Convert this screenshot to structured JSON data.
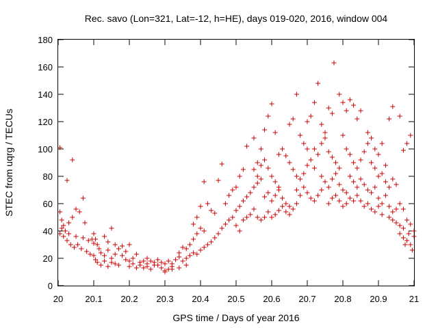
{
  "chart_data": {
    "type": "scatter",
    "title": "Rec. savo (Lon=321, Lat=-12, h=HE), days 019-020, 2016, window 004",
    "xlabel": "GPS time / Days of year 2016",
    "ylabel": "STEC from uqrg / TECUs",
    "xlim": [
      20,
      21
    ],
    "ylim": [
      0,
      180
    ],
    "xticks": [
      "20",
      "20.1",
      "20.2",
      "20.3",
      "20.4",
      "20.5",
      "20.6",
      "20.7",
      "20.8",
      "20.9",
      "21"
    ],
    "yticks": [
      "0",
      "20",
      "40",
      "60",
      "80",
      "100",
      "120",
      "140",
      "160",
      "180"
    ],
    "marker": "plus",
    "color": "#cc0000",
    "grid": false,
    "series": [
      {
        "name": "STEC",
        "points": [
          [
            20.005,
            101
          ],
          [
            20.025,
            77
          ],
          [
            20.04,
            92
          ],
          [
            20.07,
            64
          ],
          [
            20.005,
            54
          ],
          [
            20.01,
            48
          ],
          [
            20.015,
            44
          ],
          [
            20.02,
            40
          ],
          [
            20.03,
            46
          ],
          [
            20.04,
            50
          ],
          [
            20.05,
            56
          ],
          [
            20.06,
            54
          ],
          [
            20.075,
            46
          ],
          [
            20.005,
            38
          ],
          [
            20.015,
            36
          ],
          [
            20.025,
            33
          ],
          [
            20.035,
            30
          ],
          [
            20.045,
            28
          ],
          [
            20.055,
            30
          ],
          [
            20.065,
            27
          ],
          [
            20.08,
            25
          ],
          [
            20.09,
            23
          ],
          [
            20.01,
            42
          ],
          [
            20.03,
            38
          ],
          [
            20.05,
            36
          ],
          [
            20.07,
            35
          ],
          [
            20.085,
            33
          ],
          [
            20.095,
            34
          ],
          [
            20.1,
            31
          ],
          [
            20.1,
            38
          ],
          [
            20.105,
            34
          ],
          [
            20.11,
            30
          ],
          [
            20.115,
            27
          ],
          [
            20.12,
            24
          ],
          [
            20.13,
            22
          ],
          [
            20.14,
            26
          ],
          [
            20.15,
            20
          ],
          [
            20.16,
            23
          ],
          [
            20.1,
            22
          ],
          [
            20.105,
            19
          ],
          [
            20.11,
            17
          ],
          [
            20.12,
            15
          ],
          [
            20.13,
            18
          ],
          [
            20.14,
            14
          ],
          [
            20.15,
            17
          ],
          [
            20.16,
            16
          ],
          [
            20.17,
            15
          ],
          [
            20.13,
            36
          ],
          [
            20.14,
            32
          ],
          [
            20.15,
            42
          ],
          [
            20.16,
            30
          ],
          [
            20.17,
            27
          ],
          [
            20.18,
            29
          ],
          [
            20.19,
            25
          ],
          [
            20.2,
            30
          ],
          [
            20.18,
            22
          ],
          [
            20.19,
            19
          ],
          [
            20.2,
            18
          ],
          [
            20.21,
            20
          ],
          [
            20.22,
            23
          ],
          [
            20.23,
            17
          ],
          [
            20.24,
            18
          ],
          [
            20.25,
            16
          ],
          [
            20.2,
            14
          ],
          [
            20.21,
            16
          ],
          [
            20.22,
            13
          ],
          [
            20.23,
            15
          ],
          [
            20.24,
            13
          ],
          [
            20.25,
            14
          ],
          [
            20.26,
            12
          ],
          [
            20.27,
            15
          ],
          [
            20.25,
            20
          ],
          [
            20.26,
            18
          ],
          [
            20.27,
            17
          ],
          [
            20.28,
            15
          ],
          [
            20.29,
            13
          ],
          [
            20.3,
            11
          ],
          [
            20.31,
            12
          ],
          [
            20.32,
            14
          ],
          [
            20.28,
            19
          ],
          [
            20.29,
            17
          ],
          [
            20.3,
            16
          ],
          [
            20.31,
            18
          ],
          [
            20.32,
            16
          ],
          [
            20.33,
            19
          ],
          [
            20.34,
            21
          ],
          [
            20.35,
            18
          ],
          [
            20.3,
            10
          ],
          [
            20.32,
            12
          ],
          [
            20.34,
            13
          ],
          [
            20.36,
            15
          ],
          [
            20.34,
            24
          ],
          [
            20.35,
            28
          ],
          [
            20.36,
            27
          ],
          [
            20.37,
            30
          ],
          [
            20.38,
            34
          ],
          [
            20.39,
            38
          ],
          [
            20.4,
            42
          ],
          [
            20.41,
            40
          ],
          [
            20.36,
            20
          ],
          [
            20.37,
            22
          ],
          [
            20.38,
            24
          ],
          [
            20.39,
            23
          ],
          [
            20.4,
            26
          ],
          [
            20.41,
            28
          ],
          [
            20.42,
            30
          ],
          [
            20.43,
            32
          ],
          [
            20.38,
            45
          ],
          [
            20.39,
            50
          ],
          [
            20.4,
            58
          ],
          [
            20.41,
            76
          ],
          [
            20.42,
            60
          ],
          [
            20.43,
            55
          ],
          [
            20.44,
            53
          ],
          [
            20.45,
            77
          ],
          [
            20.44,
            35
          ],
          [
            20.45,
            38
          ],
          [
            20.46,
            42
          ],
          [
            20.47,
            45
          ],
          [
            20.48,
            48
          ],
          [
            20.49,
            50
          ],
          [
            20.5,
            44
          ],
          [
            20.51,
            40
          ],
          [
            20.46,
            89
          ],
          [
            20.47,
            60
          ],
          [
            20.48,
            66
          ],
          [
            20.49,
            70
          ],
          [
            20.5,
            72
          ],
          [
            20.51,
            80
          ],
          [
            20.52,
            85
          ],
          [
            20.53,
            102
          ],
          [
            20.5,
            55
          ],
          [
            20.51,
            58
          ],
          [
            20.52,
            62
          ],
          [
            20.53,
            65
          ],
          [
            20.54,
            68
          ],
          [
            20.55,
            72
          ],
          [
            20.56,
            75
          ],
          [
            20.57,
            78
          ],
          [
            20.52,
            48
          ],
          [
            20.53,
            50
          ],
          [
            20.54,
            52
          ],
          [
            20.55,
            56
          ],
          [
            20.56,
            50
          ],
          [
            20.57,
            48
          ],
          [
            20.58,
            50
          ],
          [
            20.59,
            54
          ],
          [
            20.55,
            108
          ],
          [
            20.56,
            90
          ],
          [
            20.57,
            100
          ],
          [
            20.58,
            114
          ],
          [
            20.59,
            124
          ],
          [
            20.6,
            133
          ],
          [
            20.61,
            112
          ],
          [
            20.62,
            96
          ],
          [
            20.55,
            85
          ],
          [
            20.56,
            80
          ],
          [
            20.57,
            88
          ],
          [
            20.58,
            92
          ],
          [
            20.59,
            86
          ],
          [
            20.6,
            80
          ],
          [
            20.61,
            76
          ],
          [
            20.62,
            72
          ],
          [
            20.58,
            65
          ],
          [
            20.59,
            68
          ],
          [
            20.6,
            62
          ],
          [
            20.61,
            66
          ],
          [
            20.62,
            70
          ],
          [
            20.63,
            64
          ],
          [
            20.64,
            60
          ],
          [
            20.65,
            58
          ],
          [
            20.6,
            50
          ],
          [
            20.61,
            52
          ],
          [
            20.62,
            55
          ],
          [
            20.63,
            58
          ],
          [
            20.64,
            54
          ],
          [
            20.65,
            52
          ],
          [
            20.66,
            56
          ],
          [
            20.67,
            60
          ],
          [
            20.63,
            100
          ],
          [
            20.64,
            95
          ],
          [
            20.65,
            118
          ],
          [
            20.66,
            122
          ],
          [
            20.67,
            140
          ],
          [
            20.68,
            110
          ],
          [
            20.69,
            104
          ],
          [
            20.7,
            100
          ],
          [
            20.65,
            90
          ],
          [
            20.66,
            85
          ],
          [
            20.67,
            80
          ],
          [
            20.68,
            78
          ],
          [
            20.69,
            82
          ],
          [
            20.7,
            88
          ],
          [
            20.71,
            92
          ],
          [
            20.72,
            86
          ],
          [
            20.67,
            70
          ],
          [
            20.68,
            66
          ],
          [
            20.69,
            72
          ],
          [
            20.7,
            68
          ],
          [
            20.71,
            64
          ],
          [
            20.72,
            62
          ],
          [
            20.73,
            66
          ],
          [
            20.74,
            70
          ],
          [
            20.7,
            120
          ],
          [
            20.71,
            124
          ],
          [
            20.72,
            134
          ],
          [
            20.73,
            148
          ],
          [
            20.74,
            118
          ],
          [
            20.75,
            112
          ],
          [
            20.76,
            130
          ],
          [
            20.77,
            126
          ],
          [
            20.72,
            100
          ],
          [
            20.73,
            96
          ],
          [
            20.74,
            104
          ],
          [
            20.75,
            108
          ],
          [
            20.76,
            98
          ],
          [
            20.77,
            94
          ],
          [
            20.78,
            90
          ],
          [
            20.79,
            86
          ],
          [
            20.74,
            80
          ],
          [
            20.75,
            76
          ],
          [
            20.76,
            72
          ],
          [
            20.77,
            78
          ],
          [
            20.78,
            82
          ],
          [
            20.79,
            74
          ],
          [
            20.8,
            70
          ],
          [
            20.81,
            68
          ],
          [
            20.76,
            60
          ],
          [
            20.77,
            64
          ],
          [
            20.78,
            66
          ],
          [
            20.79,
            62
          ],
          [
            20.8,
            58
          ],
          [
            20.81,
            60
          ],
          [
            20.82,
            64
          ],
          [
            20.83,
            62
          ],
          [
            20.775,
            163
          ],
          [
            20.79,
            140
          ],
          [
            20.8,
            134
          ],
          [
            20.81,
            128
          ],
          [
            20.82,
            136
          ],
          [
            20.83,
            132
          ],
          [
            20.84,
            122
          ],
          [
            20.85,
            128
          ],
          [
            20.8,
            110
          ],
          [
            20.81,
            100
          ],
          [
            20.82,
            96
          ],
          [
            20.83,
            90
          ],
          [
            20.84,
            86
          ],
          [
            20.85,
            92
          ],
          [
            20.86,
            98
          ],
          [
            20.87,
            104
          ],
          [
            20.82,
            80
          ],
          [
            20.83,
            76
          ],
          [
            20.84,
            72
          ],
          [
            20.85,
            78
          ],
          [
            20.86,
            74
          ],
          [
            20.87,
            70
          ],
          [
            20.88,
            68
          ],
          [
            20.89,
            72
          ],
          [
            20.84,
            66
          ],
          [
            20.85,
            62
          ],
          [
            20.86,
            58
          ],
          [
            20.87,
            60
          ],
          [
            20.88,
            56
          ],
          [
            20.89,
            54
          ],
          [
            20.9,
            58
          ],
          [
            20.91,
            52
          ],
          [
            20.87,
            112
          ],
          [
            20.88,
            108
          ],
          [
            20.89,
            100
          ],
          [
            20.9,
            96
          ],
          [
            20.91,
            104
          ],
          [
            20.92,
            88
          ],
          [
            20.93,
            122
          ],
          [
            20.94,
            131
          ],
          [
            20.88,
            90
          ],
          [
            20.89,
            86
          ],
          [
            20.9,
            80
          ],
          [
            20.91,
            82
          ],
          [
            20.92,
            76
          ],
          [
            20.93,
            72
          ],
          [
            20.94,
            78
          ],
          [
            20.95,
            74
          ],
          [
            20.9,
            64
          ],
          [
            20.91,
            60
          ],
          [
            20.92,
            66
          ],
          [
            20.93,
            58
          ],
          [
            20.94,
            54
          ],
          [
            20.95,
            56
          ],
          [
            20.96,
            60
          ],
          [
            20.97,
            56
          ],
          [
            20.93,
            50
          ],
          [
            20.94,
            48
          ],
          [
            20.95,
            46
          ],
          [
            20.96,
            44
          ],
          [
            20.97,
            42
          ],
          [
            20.98,
            48
          ],
          [
            20.99,
            45
          ],
          [
            21.0,
            40
          ],
          [
            20.96,
            124
          ],
          [
            20.97,
            99
          ],
          [
            20.98,
            104
          ],
          [
            20.99,
            110
          ],
          [
            20.96,
            38
          ],
          [
            20.97,
            35
          ],
          [
            20.98,
            33
          ],
          [
            20.99,
            30
          ],
          [
            21.0,
            36
          ],
          [
            20.995,
            26
          ],
          [
            20.985,
            38
          ],
          [
            20.975,
            30
          ]
        ]
      }
    ]
  }
}
